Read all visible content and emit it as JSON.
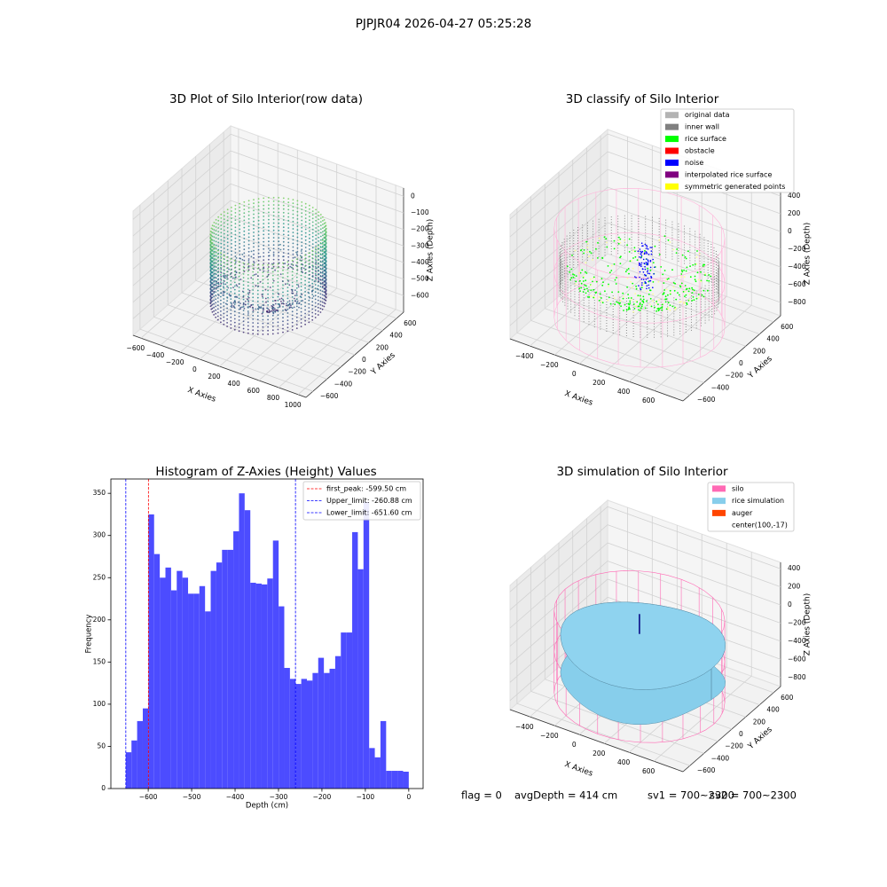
{
  "title": "PJPJR04 2026-04-27 05:25:28",
  "chart_data": [
    {
      "type": "scatter3d",
      "title": "3D Plot of Silo Interior(row data)",
      "xlabel": "X Axies",
      "ylabel": "Y Axies",
      "zlabel": "Z Axies (Depth)",
      "xlim": [
        -680,
        1080
      ],
      "ylim": [
        -700,
        700
      ],
      "zlim": [
        -700,
        50
      ],
      "xticks": [
        {
          "value": -600,
          "label": "−600"
        },
        {
          "value": -400,
          "label": "−400"
        },
        {
          "value": -200,
          "label": "−200"
        },
        0,
        200,
        400,
        600,
        800,
        1000
      ],
      "yticks": [
        {
          "value": -600,
          "label": "−600"
        },
        {
          "value": -400,
          "label": "−400"
        },
        {
          "value": -200,
          "label": "−200"
        },
        0,
        200,
        400,
        600
      ],
      "zticks": [
        0,
        {
          "value": -100,
          "label": "−100"
        },
        {
          "value": -200,
          "label": "−200"
        },
        {
          "value": -300,
          "label": "−300"
        },
        {
          "value": -400,
          "label": "−400"
        },
        {
          "value": -500,
          "label": "−500"
        },
        {
          "value": -600,
          "label": "−600"
        }
      ]
    },
    {
      "type": "scatter3d",
      "title": "3D classify of Silo Interior",
      "xlabel": "X Axies",
      "ylabel": "Y Axies",
      "zlabel": "Z Axies (Depth)",
      "xlim": [
        -560,
        835
      ],
      "ylim": [
        -700,
        700
      ],
      "zlim": [
        -950,
        450
      ],
      "xticks": [
        {
          "value": -400,
          "label": "−400"
        },
        {
          "value": -200,
          "label": "−200"
        },
        0,
        200,
        400,
        600
      ],
      "yticks": [
        {
          "value": -600,
          "label": "−600"
        },
        {
          "value": -400,
          "label": "−400"
        },
        {
          "value": -200,
          "label": "−200"
        },
        0,
        200,
        400,
        600
      ],
      "zticks": [
        400,
        200,
        0,
        {
          "value": -200,
          "label": "−200"
        },
        {
          "value": -400,
          "label": "−400"
        },
        {
          "value": -600,
          "label": "−600"
        },
        {
          "value": -800,
          "label": "−800"
        }
      ],
      "legend": [
        {
          "name": "original data",
          "color": "#b3b3b3"
        },
        {
          "name": "inner wall",
          "color": "#808080"
        },
        {
          "name": "rice surface",
          "color": "#00ff00"
        },
        {
          "name": "obstacle",
          "color": "#ff0000"
        },
        {
          "name": "noise",
          "color": "#0000ff"
        },
        {
          "name": "interpolated rice surface",
          "color": "#800080"
        },
        {
          "name": "symmetric generated points",
          "color": "#ffff00"
        }
      ]
    },
    {
      "type": "histogram",
      "title": "Histogram of Z-Axies (Height) Values",
      "xlabel": "Depth (cm)",
      "ylabel": "Frequency",
      "color": "#4c4cff",
      "bins": [
        -651.6,
        -638.57,
        -625.54,
        -612.5,
        -599.47,
        -586.44,
        -573.41,
        -560.38,
        -547.34,
        -534.31,
        -521.28,
        -508.25,
        -495.22,
        -482.18,
        -469.15,
        -456.12,
        -443.09,
        -430.06,
        -417.02,
        -403.99,
        -390.96,
        -377.93,
        -364.9,
        -351.86,
        -338.83,
        -325.8,
        -312.77,
        -299.74,
        -286.7,
        -273.67,
        -260.64,
        -247.61,
        -234.58,
        -221.54,
        -208.51,
        -195.48,
        -182.45,
        -169.42,
        -156.38,
        -143.35,
        -130.32,
        -117.29,
        -104.26,
        -91.22,
        -78.19,
        -65.16,
        -52.13,
        -39.1,
        -26.06,
        -13.03,
        0
      ],
      "values": [
        43,
        57,
        80,
        95,
        325,
        278,
        250,
        262,
        235,
        258,
        250,
        231,
        231,
        240,
        210,
        258,
        268,
        283,
        283,
        305,
        350,
        330,
        244,
        243,
        242,
        249,
        294,
        216,
        143,
        130,
        124,
        130,
        128,
        137,
        155,
        137,
        142,
        157,
        185,
        185,
        304,
        260,
        340,
        48,
        37,
        80,
        21,
        21,
        21,
        20
      ],
      "xlim": [
        -686,
        33
      ],
      "ylim": [
        0,
        367
      ],
      "xticks": [
        {
          "value": -600,
          "label": "−600"
        },
        {
          "value": -500,
          "label": "−500"
        },
        {
          "value": -400,
          "label": "−400"
        },
        {
          "value": -300,
          "label": "−300"
        },
        {
          "value": -200,
          "label": "−200"
        },
        {
          "value": -100,
          "label": "−100"
        },
        0
      ],
      "yticks": [
        0,
        50,
        100,
        150,
        200,
        250,
        300,
        350
      ],
      "vlines": [
        {
          "name": "first_peak: -599.50 cm",
          "value": -599.5,
          "color": "#ff0000"
        },
        {
          "name": "Upper_limit: -260.88 cm",
          "value": -260.88,
          "color": "#0000ff"
        },
        {
          "name": "Lower_limit: -651.60 cm",
          "value": -651.6,
          "color": "#0000ff"
        }
      ]
    },
    {
      "type": "surface3d",
      "title": "3D simulation of Silo Interior",
      "xlabel": "X Axies",
      "ylabel": "Y Axies",
      "zlabel": "Z Axies (Depth)",
      "xlim": [
        -560,
        835
      ],
      "ylim": [
        -700,
        700
      ],
      "zlim": [
        -900,
        470
      ],
      "xticks": [
        {
          "value": -400,
          "label": "−400"
        },
        {
          "value": -200,
          "label": "−200"
        },
        0,
        200,
        400,
        600
      ],
      "yticks": [
        {
          "value": -600,
          "label": "−600"
        },
        {
          "value": -400,
          "label": "−400"
        },
        {
          "value": -200,
          "label": "−200"
        },
        0,
        200,
        400,
        600
      ],
      "zticks": [
        400,
        200,
        0,
        {
          "value": -200,
          "label": "−200"
        },
        {
          "value": -400,
          "label": "−400"
        },
        {
          "value": -600,
          "label": "−600"
        },
        {
          "value": -800,
          "label": "−800"
        }
      ],
      "legend": [
        {
          "name": "silo",
          "color": "#ff69b4"
        },
        {
          "name": "rice simulation",
          "color": "#87ceeb"
        },
        {
          "name": "auger",
          "color": "#ff4500"
        },
        {
          "name": "center(100,-17)"
        }
      ]
    }
  ],
  "footer": [
    "flag = 0",
    "avgDepth = 414 cm",
    "sv1 = 700~2300",
    "sv2 = 700~2300"
  ]
}
